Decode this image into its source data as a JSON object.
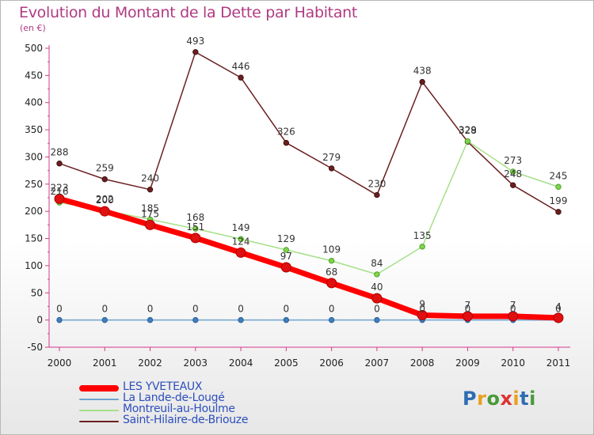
{
  "header": {
    "title": "Evolution du Montant de la Dette par Habitant",
    "unit": "(en €)"
  },
  "logo": {
    "text": "Proxiti"
  },
  "chart_data": {
    "type": "line",
    "title": "Evolution du Montant de la Dette par Habitant",
    "subtitle": "(en €)",
    "xlabel": "",
    "ylabel": "",
    "categories": [
      "2000",
      "2001",
      "2002",
      "2003",
      "2004",
      "2005",
      "2006",
      "2007",
      "2008",
      "2009",
      "2010",
      "2011"
    ],
    "ylim": [
      -50,
      500
    ],
    "yticks": [
      -50,
      0,
      50,
      100,
      150,
      200,
      250,
      300,
      350,
      400,
      450,
      500
    ],
    "grid": false,
    "legend_position": "bottom-left",
    "series": [
      {
        "name": "LES YVETEAUX",
        "color": "#ff0000",
        "values": [
          223,
          200,
          175,
          151,
          124,
          97,
          68,
          40,
          9,
          7,
          7,
          4
        ]
      },
      {
        "name": "La Lande-de-Lougé",
        "color": "#6fa4cf",
        "values": [
          0,
          0,
          0,
          0,
          0,
          0,
          0,
          0,
          0,
          0,
          0,
          0
        ]
      },
      {
        "name": "Montreuil-au-Houlme",
        "color": "#a6e08a",
        "values": [
          216,
          202,
          185,
          168,
          149,
          129,
          109,
          84,
          135,
          329,
          273,
          245
        ]
      },
      {
        "name": "Saint-Hilaire-de-Briouze",
        "color": "#6b1f1f",
        "values": [
          288,
          259,
          240,
          493,
          446,
          326,
          279,
          230,
          438,
          328,
          248,
          199
        ]
      }
    ]
  }
}
